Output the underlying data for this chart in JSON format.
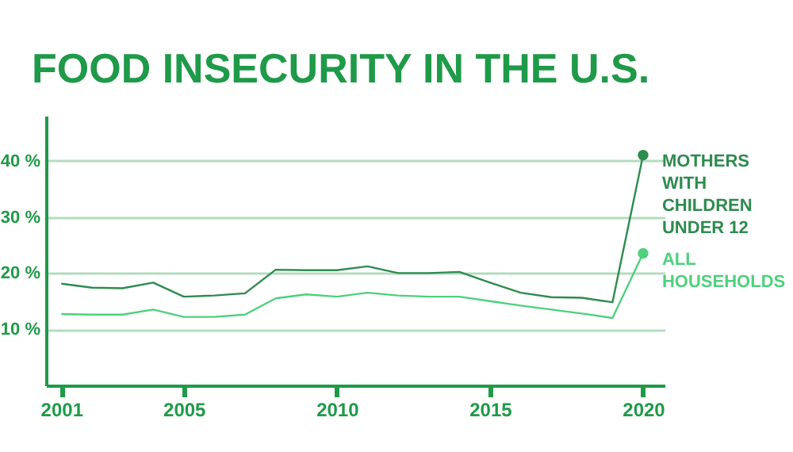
{
  "chart_data": {
    "type": "line",
    "title": "FOOD INSECURITY IN THE U.S.",
    "x": [
      2001,
      2002,
      2003,
      2004,
      2005,
      2006,
      2007,
      2008,
      2009,
      2010,
      2011,
      2012,
      2013,
      2014,
      2015,
      2016,
      2017,
      2018,
      2019,
      2020
    ],
    "series": [
      {
        "name": "MOTHERS WITH CHILDREN UNDER 12",
        "color": "#2e8b4f",
        "values": [
          18.1,
          17.4,
          17.3,
          18.3,
          15.8,
          16.0,
          16.4,
          20.6,
          20.5,
          20.5,
          21.2,
          20.0,
          20.0,
          20.2,
          18.3,
          16.5,
          15.7,
          15.6,
          14.8,
          41
        ]
      },
      {
        "name": "ALL HOUSEHOLDS",
        "color": "#4fd07e",
        "values": [
          12.7,
          12.6,
          12.6,
          13.5,
          12.2,
          12.2,
          12.6,
          15.5,
          16.2,
          15.8,
          16.5,
          16.0,
          15.8,
          15.8,
          15.0,
          14.2,
          13.5,
          12.8,
          12.0,
          23.5
        ]
      }
    ],
    "xlim": [
      2000.5,
      2020.7
    ],
    "xticks": [
      2001,
      2005,
      2010,
      2015,
      2020
    ],
    "ylim": [
      0,
      48
    ],
    "yticks": [
      {
        "value": 10,
        "label": "10 %"
      },
      {
        "value": 20,
        "label": "20 %"
      },
      {
        "value": 30,
        "label": "30 %"
      },
      {
        "value": 40,
        "label": "40 %"
      }
    ],
    "grid": "y",
    "legend": false,
    "marker": "none",
    "line_style": "solid"
  }
}
